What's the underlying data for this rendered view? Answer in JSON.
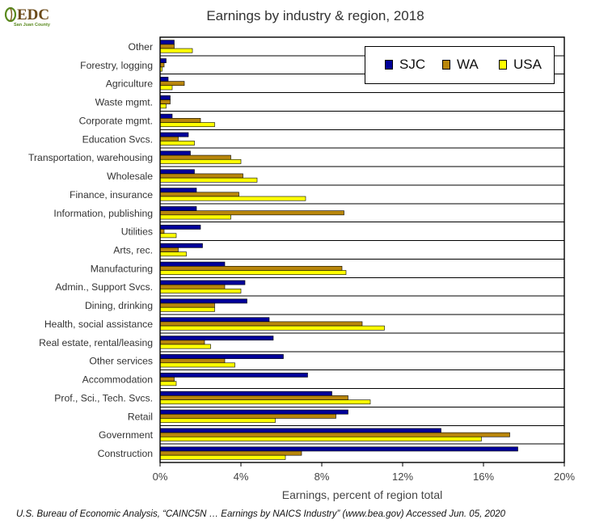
{
  "logo": {
    "text": "EDC",
    "subtext": "San Juan County"
  },
  "chart_data": {
    "type": "bar",
    "orientation": "horizontal",
    "title": "Earnings by industry & region, 2018",
    "xlabel": "Earnings, percent of region total",
    "ylabel": "",
    "xlim": [
      0,
      20
    ],
    "xticks": [
      0,
      4,
      8,
      12,
      16,
      20
    ],
    "xtick_labels": [
      "0%",
      "4%",
      "8%",
      "12%",
      "16%",
      "20%"
    ],
    "grid": "horizontal separators between categories",
    "legend_position": "top-right",
    "categories": [
      "Other",
      "Forestry, logging",
      "Agriculture",
      "Waste mgmt.",
      "Corporate mgmt.",
      "Education Svcs.",
      "Transportation, warehousing",
      "Wholesale",
      "Finance, insurance",
      "Information, publishing",
      "Utilities",
      "Arts, rec.",
      "Manufacturing",
      "Admin., Support Svcs.",
      "Dining, drinking",
      "Health, social assistance",
      "Real estate, rental/leasing",
      "Other services",
      "Accommodation",
      "Prof., Sci., Tech. Svcs.",
      "Retail",
      "Government",
      "Construction"
    ],
    "series": [
      {
        "name": "SJC",
        "color": "#000099",
        "values": [
          0.7,
          0.3,
          0.4,
          0.5,
          0.6,
          1.4,
          1.5,
          1.7,
          1.8,
          1.8,
          2.0,
          2.1,
          3.2,
          4.2,
          4.3,
          5.4,
          5.6,
          6.1,
          7.3,
          8.5,
          9.3,
          13.9,
          17.7
        ]
      },
      {
        "name": "WA",
        "color": "#b8860b",
        "values": [
          0.7,
          0.2,
          1.2,
          0.5,
          2.0,
          0.9,
          3.5,
          4.1,
          3.9,
          9.1,
          0.2,
          0.9,
          9.0,
          3.2,
          2.7,
          10.0,
          2.2,
          3.2,
          0.7,
          9.3,
          8.7,
          17.3,
          7.0
        ]
      },
      {
        "name": "USA",
        "color": "#ffff00",
        "values": [
          1.6,
          0.1,
          0.6,
          0.3,
          2.7,
          1.7,
          4.0,
          4.8,
          7.2,
          3.5,
          0.8,
          1.3,
          9.2,
          4.0,
          2.7,
          11.1,
          2.5,
          3.7,
          0.8,
          10.4,
          5.7,
          15.9,
          6.2
        ]
      }
    ]
  },
  "source_note": "U.S. Bureau of Economic Analysis, “CAINC5N … Earnings by NAICS Industry” (www.bea.gov) Accessed Jun. 05, 2020"
}
